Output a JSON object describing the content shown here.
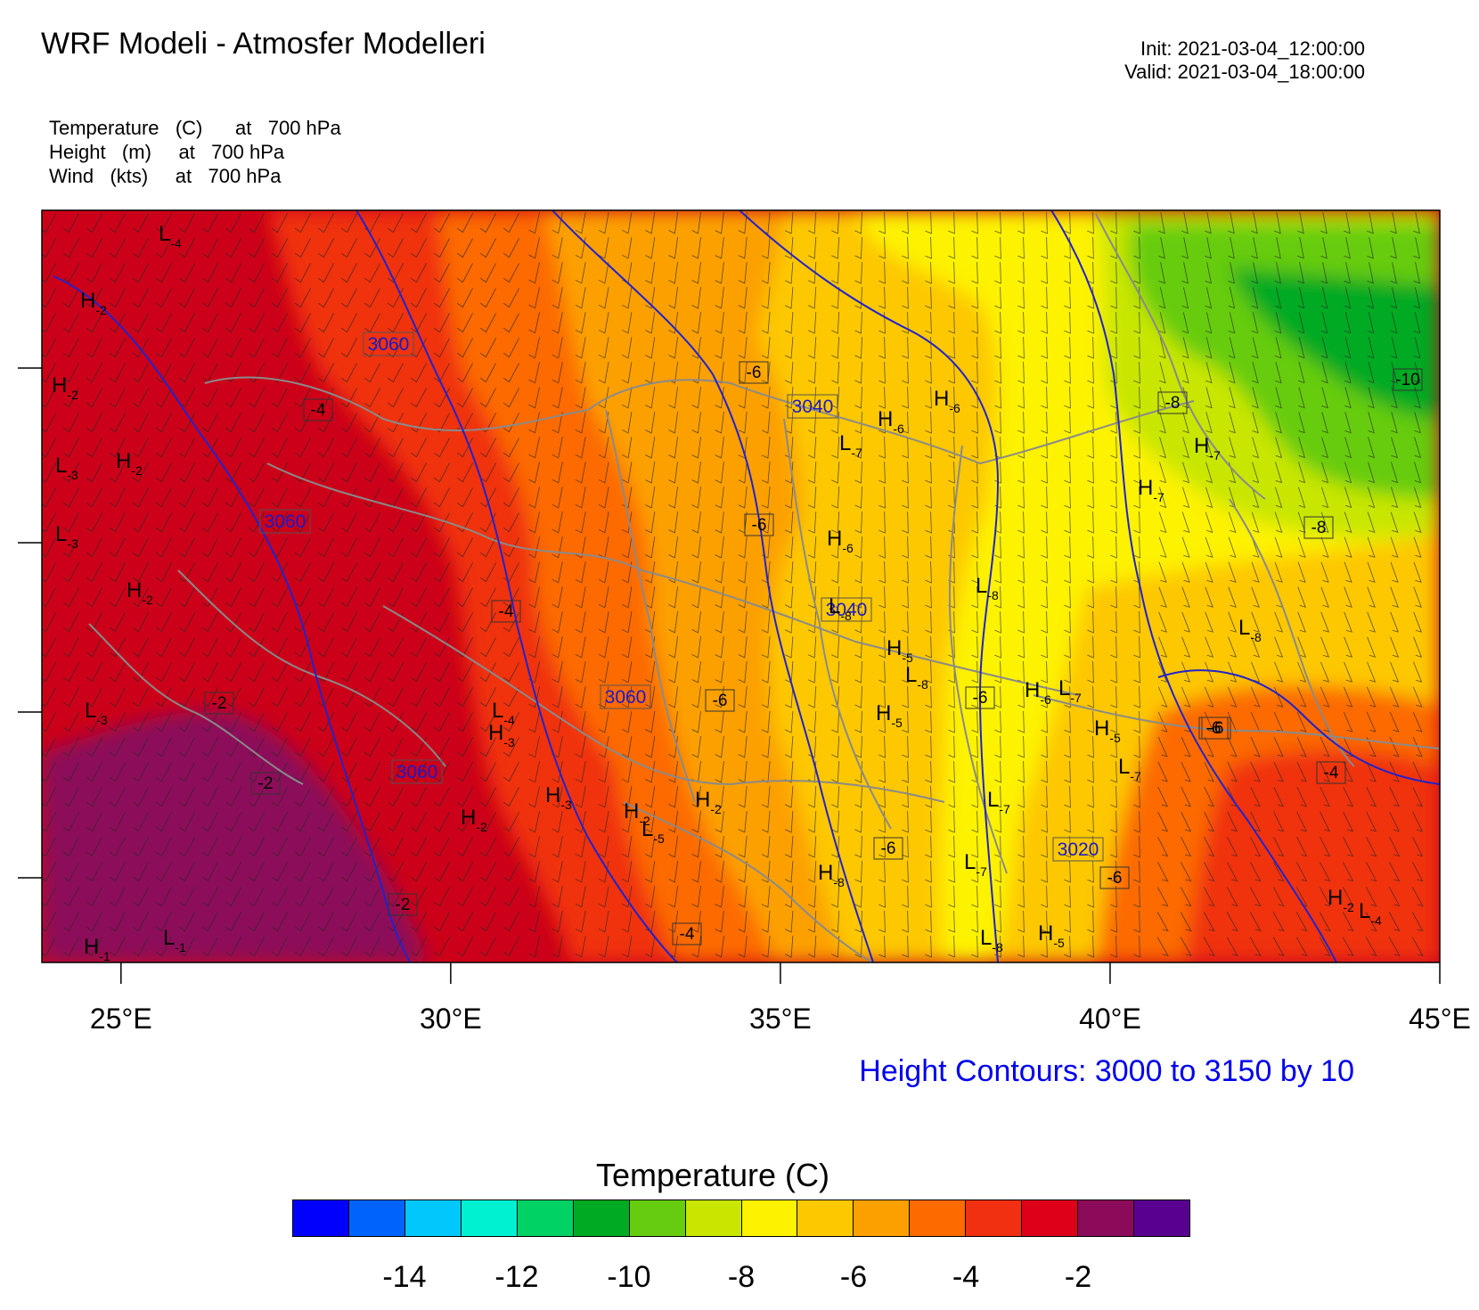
{
  "header": {
    "title": "WRF Modeli - Atmosfer Modelleri",
    "init": "Init: 2021-03-04_12:00:00",
    "valid": "Valid: 2021-03-04_18:00:00"
  },
  "fields": [
    "Temperature   (C)      at   700 hPa",
    "Height   (m)     at   700 hPa",
    "Wind   (kts)     at   700 hPa"
  ],
  "map": {
    "lon_range": [
      23.8,
      45.0
    ],
    "lat_range": [
      34.2,
      42.8
    ],
    "lon_ticks": [
      25,
      30,
      35,
      40,
      45
    ],
    "lon_tick_labels": [
      "25°E",
      "30°E",
      "35°E",
      "40°E",
      "45°E"
    ],
    "colors": {
      "ocean": "#cc0018",
      "border": "#8a8a8a",
      "contour": "#2222cc",
      "wind_barb": "#2a2a2a"
    },
    "temperature_bands": [
      {
        "level": -2,
        "color": "#8c0a5a"
      },
      {
        "level": -3,
        "color": "#de0018"
      },
      {
        "level": -4,
        "color": "#f03010"
      },
      {
        "level": -5,
        "color": "#fc6a00"
      },
      {
        "level": -6,
        "color": "#fca000"
      },
      {
        "level": -7,
        "color": "#fdc800"
      },
      {
        "level": -8,
        "color": "#fdf200"
      },
      {
        "level": -9,
        "color": "#c8e600"
      },
      {
        "level": -10,
        "color": "#66cc10"
      },
      {
        "level": -11,
        "color": "#00aa22"
      }
    ],
    "height_contour_labels": [
      "3060",
      "3060",
      "3060",
      "3060",
      "3040",
      "3040",
      "3020"
    ],
    "temperature_labels": [
      "-4",
      "-2",
      "-4",
      "-2",
      "-2",
      "-6",
      "-6",
      "-6",
      "-6",
      "-6",
      "-6",
      "-6",
      "-8",
      "-10",
      "-8",
      "-6",
      "-4",
      "-4"
    ],
    "extrema": [
      {
        "type": "L",
        "value": "4"
      },
      {
        "type": "H",
        "value": "2"
      },
      {
        "type": "H",
        "value": "2"
      },
      {
        "type": "L",
        "value": "3"
      },
      {
        "type": "H",
        "value": "2"
      },
      {
        "type": "H",
        "value": "2"
      },
      {
        "type": "L",
        "value": "3"
      },
      {
        "type": "L",
        "value": "3"
      },
      {
        "type": "H",
        "value": "1"
      },
      {
        "type": "L",
        "value": "1"
      },
      {
        "type": "L",
        "value": "4"
      },
      {
        "type": "H",
        "value": "3"
      },
      {
        "type": "H",
        "value": "3"
      },
      {
        "type": "H",
        "value": "2"
      },
      {
        "type": "H",
        "value": "2"
      },
      {
        "type": "L",
        "value": "5"
      },
      {
        "type": "H",
        "value": "2"
      },
      {
        "type": "L",
        "value": "7"
      },
      {
        "type": "H",
        "value": "6"
      },
      {
        "type": "H",
        "value": "6"
      },
      {
        "type": "H",
        "value": "6"
      },
      {
        "type": "L",
        "value": "8"
      },
      {
        "type": "H",
        "value": "5"
      },
      {
        "type": "L",
        "value": "8"
      },
      {
        "type": "H",
        "value": "5"
      },
      {
        "type": "H",
        "value": "6"
      },
      {
        "type": "L",
        "value": "7"
      },
      {
        "type": "H",
        "value": "5"
      },
      {
        "type": "L",
        "value": "7"
      },
      {
        "type": "L",
        "value": "7"
      },
      {
        "type": "L",
        "value": "7"
      },
      {
        "type": "L",
        "value": "8"
      },
      {
        "type": "H",
        "value": "5"
      },
      {
        "type": "H",
        "value": "8"
      },
      {
        "type": "H",
        "value": "7"
      },
      {
        "type": "H",
        "value": "7"
      },
      {
        "type": "H",
        "value": "7"
      },
      {
        "type": "L",
        "value": "8"
      },
      {
        "type": "H",
        "value": "2"
      },
      {
        "type": "L",
        "value": "4"
      },
      {
        "type": "L",
        "value": "8"
      }
    ]
  },
  "contour_note": "Height Contours: 3000 to 3150 by 10",
  "colorbar": {
    "title": "Temperature  (C)",
    "colors": [
      "#0000fc",
      "#0064fc",
      "#00c8fc",
      "#00f0d2",
      "#00d264",
      "#00aa22",
      "#66cc10",
      "#c8e600",
      "#fdf200",
      "#fdc800",
      "#fca000",
      "#fc6a00",
      "#f03010",
      "#de0018",
      "#8c0a5a",
      "#5a0090"
    ],
    "tick_labels": [
      "-14",
      "-12",
      "-10",
      "-8",
      "-6",
      "-4",
      "-2"
    ]
  }
}
